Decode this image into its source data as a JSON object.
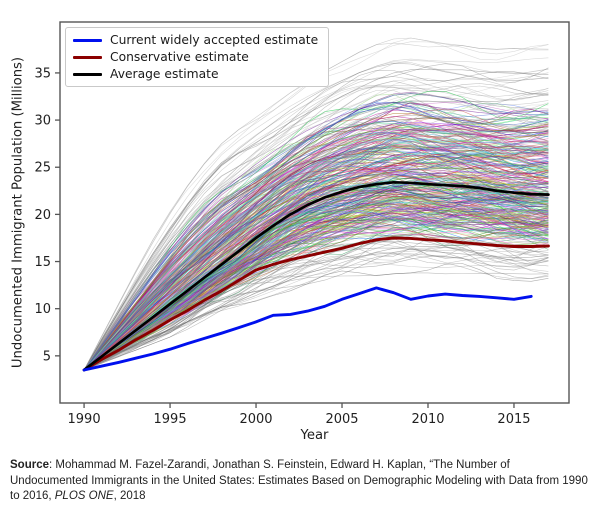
{
  "figure": {
    "background": "#ffffff"
  },
  "chart_data": {
    "type": "line",
    "title": "",
    "xlabel": "Year",
    "ylabel": "Undocumented Immigrant Population (Millions)",
    "xlim": [
      1988.6,
      2018.2
    ],
    "ylim": [
      0,
      40.4
    ],
    "x_ticks": [
      1990,
      1995,
      2000,
      2005,
      2010,
      2015
    ],
    "y_ticks": [
      5,
      10,
      15,
      20,
      25,
      30,
      35
    ],
    "grid": false,
    "legend_position": "upper-left",
    "series": [
      {
        "name": "Current widely accepted estimate",
        "color": "#0010ee",
        "line_width": 2.9,
        "year_start": 1990,
        "values": [
          3.5,
          3.9,
          4.3,
          4.75,
          5.2,
          5.7,
          6.3,
          6.85,
          7.4,
          8.0,
          8.6,
          9.3,
          9.4,
          9.75,
          10.25,
          11.0,
          11.6,
          12.2,
          11.7,
          11.0,
          11.35,
          11.55,
          11.4,
          11.3,
          11.15,
          11.0,
          11.3
        ]
      },
      {
        "name": "Conservative estimate",
        "color": "#8b0000",
        "line_width": 2.9,
        "year_start": 1990,
        "values": [
          3.5,
          4.6,
          5.6,
          6.7,
          7.7,
          8.8,
          9.8,
          10.9,
          11.9,
          13.0,
          14.1,
          14.7,
          15.2,
          15.6,
          16.0,
          16.4,
          16.9,
          17.3,
          17.5,
          17.45,
          17.3,
          17.2,
          17.0,
          16.85,
          16.7,
          16.6,
          16.6,
          16.65
        ]
      },
      {
        "name": "Average estimate",
        "color": "#000000",
        "line_width": 2.7,
        "year_start": 1990,
        "values": [
          3.5,
          4.9,
          6.3,
          7.7,
          9.1,
          10.5,
          11.9,
          13.3,
          14.7,
          16.1,
          17.5,
          18.8,
          20.0,
          21.0,
          21.8,
          22.4,
          22.9,
          23.2,
          23.4,
          23.35,
          23.2,
          23.1,
          23.0,
          22.8,
          22.5,
          22.3,
          22.15,
          22.1
        ]
      }
    ],
    "ensemble": {
      "description": "Simulated population trajectories shown as thin multicolored lines spanning the envelope band",
      "count": 400,
      "seed": 11,
      "year_start": 1990,
      "lower_envelope": [
        3.5,
        4.2,
        4.9,
        5.6,
        6.3,
        7.0,
        7.8,
        8.6,
        9.4,
        10.1,
        10.8,
        11.4,
        11.9,
        12.3,
        12.6,
        12.9,
        13.2,
        13.5,
        13.7,
        13.8,
        13.8,
        13.7,
        13.6,
        13.4,
        13.2,
        13.0,
        12.9,
        13.0
      ],
      "upper_envelope": [
        3.5,
        7.0,
        10.5,
        14.0,
        17.3,
        20.3,
        23.0,
        25.4,
        27.5,
        29.0,
        30.3,
        31.6,
        32.9,
        34.1,
        35.2,
        36.2,
        37.2,
        38.0,
        38.6,
        38.7,
        38.4,
        38.1,
        37.9,
        37.6,
        37.5,
        37.6,
        37.8,
        38.0
      ]
    }
  },
  "caption": {
    "source_label": "Source",
    "text_before_italic": ": Mohammad M. Fazel-Zarandi, Jonathan S. Feinstein, Edward H. Kaplan, “The Number of Undocumented Immigrants in the United States: Estimates Based on Demographic Modeling with Data from 1990 to 2016, ",
    "italic_text": "PLOS ONE",
    "text_after_italic": ", 2018"
  }
}
